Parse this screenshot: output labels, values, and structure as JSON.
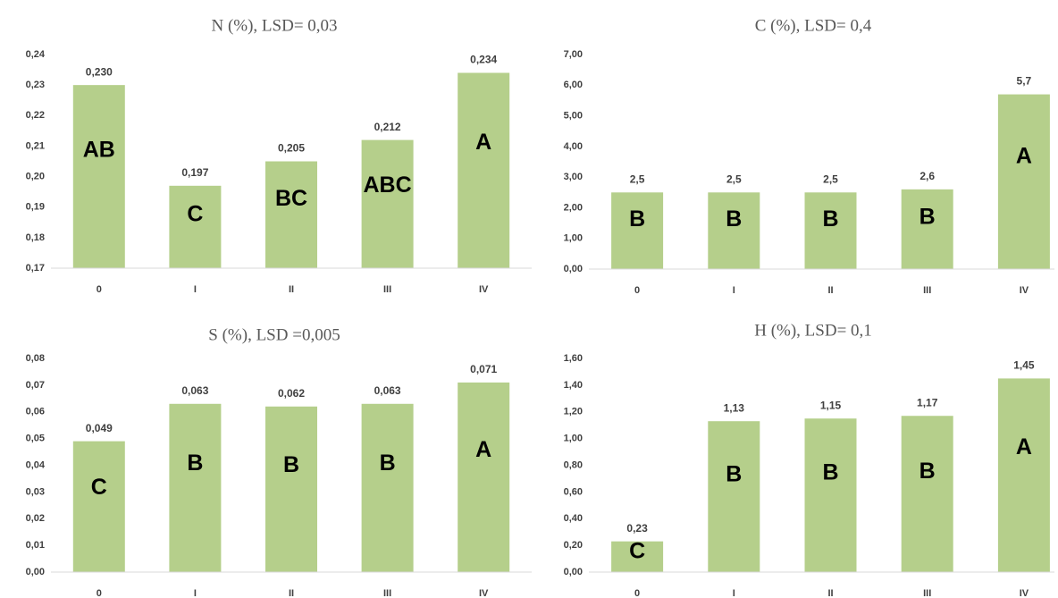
{
  "chart_data": [
    {
      "type": "bar",
      "title": "N (%), LSD= 0,03",
      "categories": [
        "0",
        "I",
        "II",
        "III",
        "IV"
      ],
      "values": [
        0.23,
        0.197,
        0.205,
        0.212,
        0.234
      ],
      "value_labels": [
        "0,230",
        "0,197",
        "0,205",
        "0,212",
        "0,234"
      ],
      "letters": [
        "AB",
        "C",
        "BC",
        "ABC",
        "A"
      ],
      "color": "#b5cf8b",
      "grid": false,
      "ylim": [
        0.17,
        0.24
      ],
      "yticks": [
        {
          "value": 0.17,
          "label": "0,17"
        },
        {
          "value": 0.18,
          "label": "0,18"
        },
        {
          "value": 0.19,
          "label": "0,19"
        },
        {
          "value": 0.2,
          "label": "0,20"
        },
        {
          "value": 0.21,
          "label": "0,21"
        },
        {
          "value": 0.22,
          "label": "0,22"
        },
        {
          "value": 0.23,
          "label": "0,23"
        },
        {
          "value": 0.24,
          "label": "0,24"
        }
      ]
    },
    {
      "type": "bar",
      "title": "C (%), LSD= 0,4",
      "categories": [
        "0",
        "I",
        "II",
        "III",
        "IV"
      ],
      "values": [
        2.5,
        2.5,
        2.5,
        2.6,
        5.7
      ],
      "value_labels": [
        "2,5",
        "2,5",
        "2,5",
        "2,6",
        "5,7"
      ],
      "letters": [
        "B",
        "B",
        "B",
        "B",
        "A"
      ],
      "color": "#b5cf8b",
      "grid": false,
      "ylim": [
        0,
        7
      ],
      "yticks": [
        {
          "value": 0,
          "label": "0,00"
        },
        {
          "value": 1,
          "label": "1,00"
        },
        {
          "value": 2,
          "label": "2,00"
        },
        {
          "value": 3,
          "label": "3,00"
        },
        {
          "value": 4,
          "label": "4,00"
        },
        {
          "value": 5,
          "label": "5,00"
        },
        {
          "value": 6,
          "label": "6,00"
        },
        {
          "value": 7,
          "label": "7,00"
        }
      ]
    },
    {
      "type": "bar",
      "title": "S (%), LSD =0,005",
      "categories": [
        "0",
        "I",
        "II",
        "III",
        "IV"
      ],
      "values": [
        0.049,
        0.063,
        0.062,
        0.063,
        0.071
      ],
      "value_labels": [
        "0,049",
        "0,063",
        "0,062",
        "0,063",
        "0,071"
      ],
      "letters": [
        "C",
        "B",
        "B",
        "B",
        "A"
      ],
      "color": "#b5cf8b",
      "grid": false,
      "ylim": [
        0,
        0.08
      ],
      "yticks": [
        {
          "value": 0,
          "label": "0,00"
        },
        {
          "value": 0.01,
          "label": "0,01"
        },
        {
          "value": 0.02,
          "label": "0,02"
        },
        {
          "value": 0.03,
          "label": "0,03"
        },
        {
          "value": 0.04,
          "label": "0,04"
        },
        {
          "value": 0.05,
          "label": "0,05"
        },
        {
          "value": 0.06,
          "label": "0,06"
        },
        {
          "value": 0.07,
          "label": "0,07"
        },
        {
          "value": 0.08,
          "label": "0,08"
        }
      ]
    },
    {
      "type": "bar",
      "title": "H (%), LSD= 0,1",
      "categories": [
        "0",
        "I",
        "II",
        "III",
        "IV"
      ],
      "values": [
        0.23,
        1.13,
        1.15,
        1.17,
        1.45
      ],
      "value_labels": [
        "0,23",
        "1,13",
        "1,15",
        "1,17",
        "1,45"
      ],
      "letters": [
        "C",
        "B",
        "B",
        "B",
        "A"
      ],
      "color": "#b5cf8b",
      "grid": false,
      "ylim": [
        0,
        1.6
      ],
      "yticks": [
        {
          "value": 0,
          "label": "0,00"
        },
        {
          "value": 0.2,
          "label": "0,20"
        },
        {
          "value": 0.4,
          "label": "0,40"
        },
        {
          "value": 0.6,
          "label": "0,60"
        },
        {
          "value": 0.8,
          "label": "0,80"
        },
        {
          "value": 1.0,
          "label": "1,00"
        },
        {
          "value": 1.2,
          "label": "1,20"
        },
        {
          "value": 1.4,
          "label": "1,40"
        },
        {
          "value": 1.6,
          "label": "1,60"
        }
      ]
    }
  ]
}
